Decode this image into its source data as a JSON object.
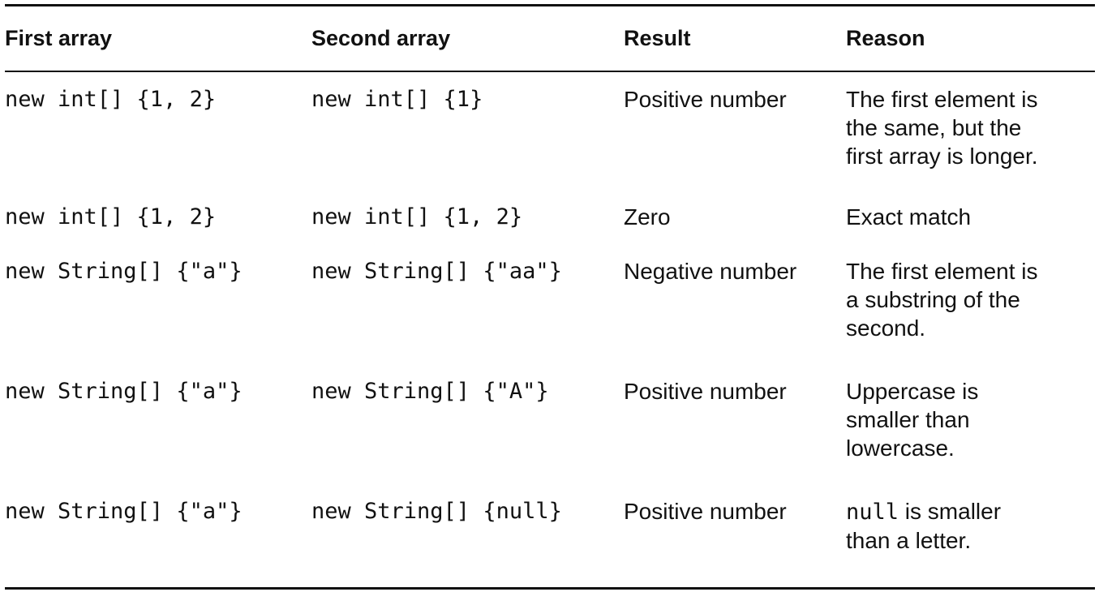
{
  "headers": {
    "first": "First array",
    "second": "Second array",
    "result": "Result",
    "reason": "Reason"
  },
  "rows": [
    {
      "first": "new int[] {1, 2}",
      "second": "new int[] {1}",
      "result": "Positive number",
      "reason_lines": [
        "The first element is",
        "the same, but the",
        "first array is longer."
      ]
    },
    {
      "first": "new int[] {1, 2}",
      "second": "new int[] {1, 2}",
      "result": "Zero",
      "reason_lines": [
        "Exact match"
      ]
    },
    {
      "first": "new String[] {\"a\"}",
      "second": "new String[] {\"aa\"}",
      "result": "Negative number",
      "reason_lines": [
        "The first element is",
        "a substring of the",
        "second."
      ]
    },
    {
      "first": "new String[] {\"a\"}",
      "second": "new String[] {\"A\"}",
      "result": "Positive number",
      "reason_lines": [
        "Uppercase is",
        "smaller than",
        "lowercase."
      ]
    },
    {
      "first": "new String[] {\"a\"}",
      "second": "new String[] {null}",
      "result": "Positive number",
      "reason_code": "null",
      "reason_lines": [
        " is smaller",
        "than a letter."
      ]
    }
  ]
}
